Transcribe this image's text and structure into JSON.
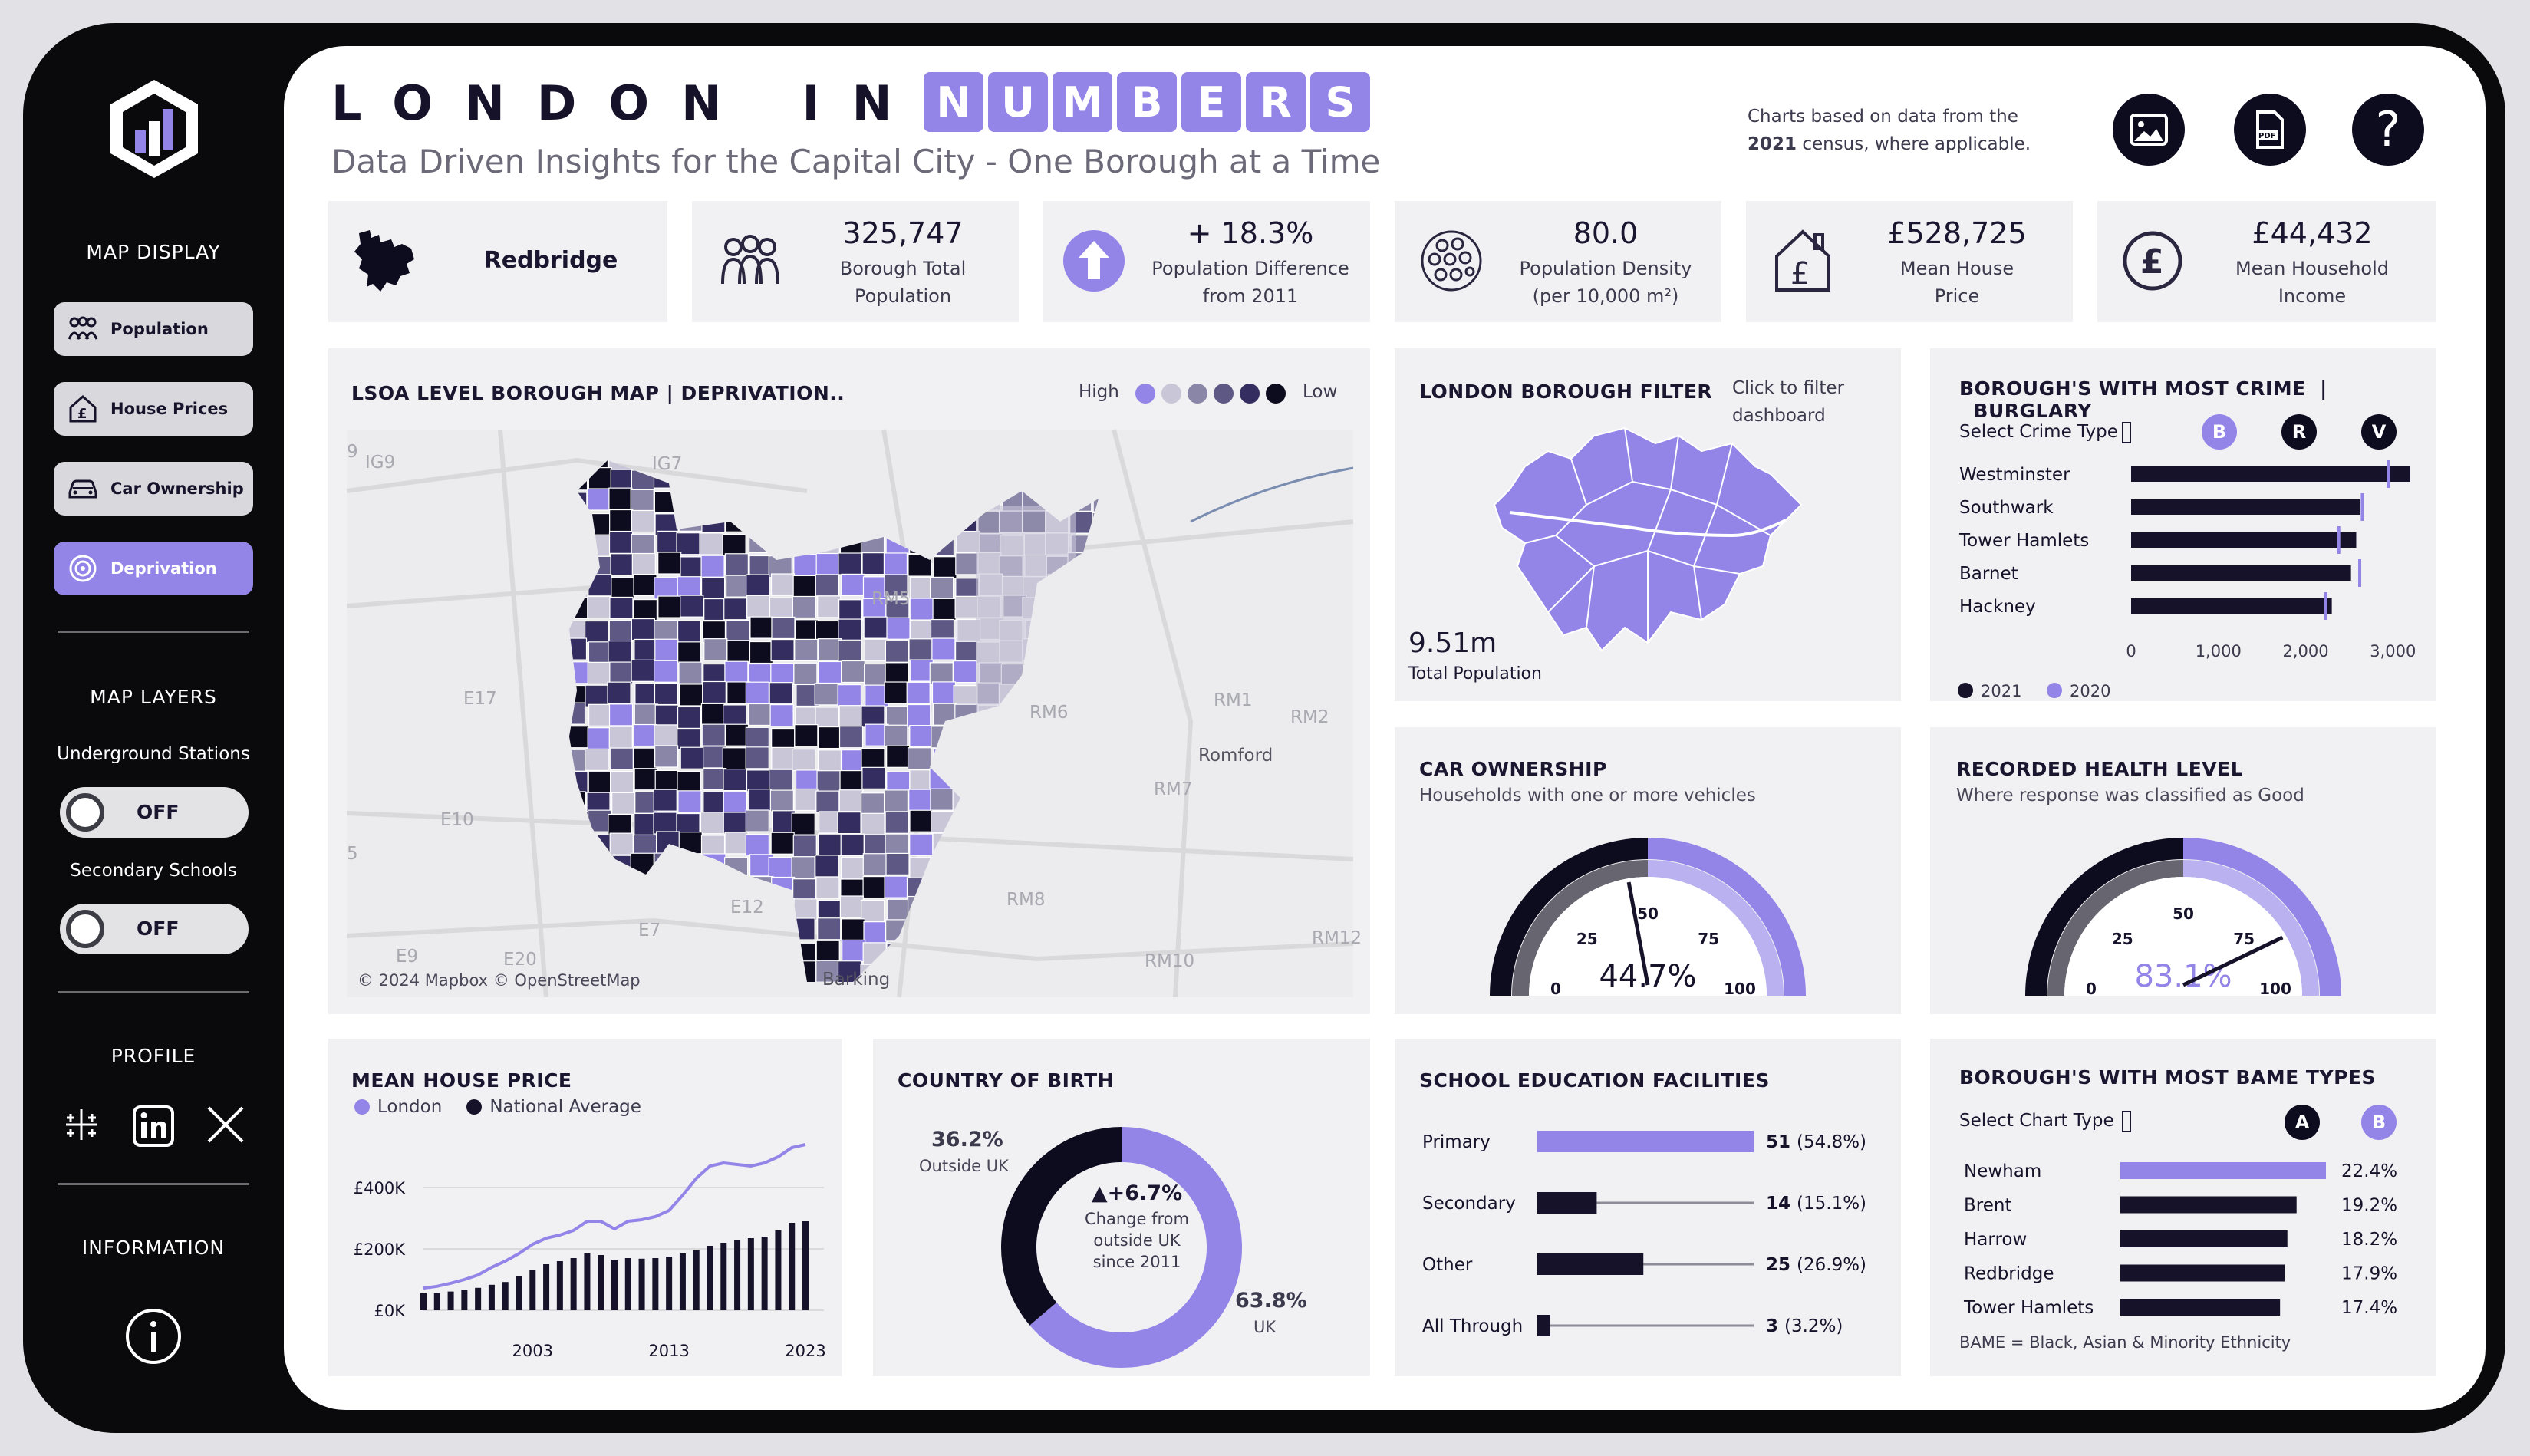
{
  "brand": {
    "title_left": "LONDON IN",
    "title_right": "NUMBERS",
    "subtitle": "Data Driven Insights for the Capital City - One Borough at a Time",
    "note_line1": "Charts based on data from the",
    "note_year": "2021",
    "note_line2": "census, where applicable.",
    "accent": "#9384e8",
    "dark": "#15122a"
  },
  "sidebar": {
    "map_display_title": "MAP DISPLAY",
    "buttons": [
      {
        "label": "Population",
        "icon": "people-icon",
        "active": false
      },
      {
        "label": "House Prices",
        "icon": "house-pound-icon",
        "active": false
      },
      {
        "label": "Car Ownership",
        "icon": "car-icon",
        "active": false
      },
      {
        "label": "Deprivation",
        "icon": "target-icon",
        "active": true
      }
    ],
    "map_layers_title": "MAP LAYERS",
    "layers": [
      {
        "label": "Underground Stations",
        "state": "OFF"
      },
      {
        "label": "Secondary Schools",
        "state": "OFF"
      }
    ],
    "profile_title": "PROFILE",
    "information_title": "INFORMATION"
  },
  "kpis": {
    "borough": "Redbridge",
    "population_value": "325,747",
    "population_label1": "Borough Total",
    "population_label2": "Population",
    "diff_value": "+ 18.3%",
    "diff_label1": "Population Difference",
    "diff_label2": "from 2011",
    "density_value": "80.0",
    "density_label1": "Population Density",
    "density_label2": "(per 10,000 m²)",
    "house_value": "£528,725",
    "house_label1": "Mean House",
    "house_label2": "Price",
    "income_value": "£44,432",
    "income_label1": "Mean Household",
    "income_label2": "Income"
  },
  "map": {
    "title": "LSOA LEVEL BOROUGH MAP  |  DEPRIVATION..",
    "legend_high": "High",
    "legend_low": "Low",
    "legend_colors": [
      "#9384e8",
      "#c9c6d8",
      "#8a86a8",
      "#5d5884",
      "#342d5f",
      "#0d0b1e"
    ],
    "attribution": "© 2024 Mapbox © OpenStreetMap",
    "place_labels": [
      "IG9",
      "IG7",
      "RM5",
      "E17",
      "RM6",
      "RM1",
      "RM2",
      "Romford",
      "E10",
      "RM7",
      "E7",
      "E12",
      "RM8",
      "E9",
      "E20",
      "Barking",
      "RM10",
      "RM12",
      "9",
      "5"
    ]
  },
  "filter": {
    "title": "LONDON BOROUGH FILTER",
    "hint1": "Click to filter",
    "hint2": "dashboard",
    "total_value": "9.51m",
    "total_label": "Total Population"
  },
  "crime": {
    "title_prefix": "BOROUGH'S WITH MOST CRIME",
    "title_type": "BURGLARY",
    "select_label": "Select Crime Type",
    "type_buttons": [
      {
        "label": "B",
        "active": true
      },
      {
        "label": "R",
        "active": false
      },
      {
        "label": "V",
        "active": false
      }
    ],
    "legend_2021": "2021",
    "legend_2020": "2020"
  },
  "car": {
    "title": "CAR OWNERSHIP",
    "subtitle": "Households with one or more vehicles",
    "value_label": "44.7%",
    "ticks": [
      "0",
      "25",
      "50",
      "75",
      "100"
    ]
  },
  "health": {
    "title": "RECORDED HEALTH LEVEL",
    "subtitle": "Where response was classified as Good",
    "value_label": "83.1%",
    "ticks": [
      "0",
      "25",
      "50",
      "75",
      "100"
    ]
  },
  "house_price_chart": {
    "title": "MEAN HOUSE PRICE",
    "legend_london": "London",
    "legend_national": "National Average"
  },
  "birth": {
    "title": "COUNTRY OF BIRTH",
    "outside_pct": "36.2%",
    "outside_label": "Outside UK",
    "uk_pct": "63.8%",
    "uk_label": "UK",
    "center_value": "▲+6.7%",
    "center_line1": "Change from",
    "center_line2": "outside UK",
    "center_line3": "since 2011"
  },
  "schools": {
    "title": "SCHOOL EDUCATION FACILITIES",
    "rows": [
      {
        "label": "Primary",
        "count": "51",
        "pct": "(54.8%)"
      },
      {
        "label": "Secondary",
        "count": "14",
        "pct": "(15.1%)"
      },
      {
        "label": "Other",
        "count": "25",
        "pct": "(26.9%)"
      },
      {
        "label": "All Through",
        "count": "3",
        "pct": "(3.2%)"
      }
    ]
  },
  "bame": {
    "title": "BOROUGH'S WITH MOST BAME TYPES",
    "select_label": "Select Chart Type",
    "type_buttons": [
      {
        "label": "A",
        "active": false
      },
      {
        "label": "B",
        "active": true
      }
    ],
    "rows": [
      {
        "label": "Newham",
        "pct": "22.4%"
      },
      {
        "label": "Brent",
        "pct": "19.2%"
      },
      {
        "label": "Harrow",
        "pct": "18.2%"
      },
      {
        "label": "Redbridge",
        "pct": "17.9%"
      },
      {
        "label": "Tower Hamlets",
        "pct": "17.4%"
      }
    ],
    "footnote": "BAME  =  Black, Asian & Minority Ethnicity"
  },
  "chart_data": [
    {
      "type": "bar",
      "title": "BOROUGH'S WITH MOST CRIME | BURGLARY",
      "categories": [
        "Westminster",
        "Southwark",
        "Tower Hamlets",
        "Barnet",
        "Hackney"
      ],
      "series": [
        {
          "name": "2021",
          "values": [
            3200,
            2620,
            2580,
            2520,
            2300
          ]
        },
        {
          "name": "2020",
          "values": [
            2950,
            2650,
            2380,
            2620,
            2230
          ]
        }
      ],
      "xlim": [
        0,
        3200
      ],
      "xticks": [
        "0",
        "1,000",
        "2,000",
        "3,000"
      ]
    },
    {
      "type": "bar",
      "title": "CAR OWNERSHIP",
      "values": [
        44.7
      ],
      "ylim": [
        0,
        100
      ]
    },
    {
      "type": "bar",
      "title": "RECORDED HEALTH LEVEL",
      "values": [
        83.1
      ],
      "ylim": [
        0,
        100
      ]
    },
    {
      "type": "line",
      "title": "MEAN HOUSE PRICE",
      "x": [
        1995,
        1996,
        1997,
        1998,
        1999,
        2000,
        2001,
        2002,
        2003,
        2004,
        2005,
        2006,
        2007,
        2008,
        2009,
        2010,
        2011,
        2012,
        2013,
        2014,
        2015,
        2016,
        2017,
        2018,
        2019,
        2020,
        2021,
        2022,
        2023
      ],
      "series": [
        {
          "name": "London",
          "values": [
            72,
            78,
            88,
            100,
            115,
            140,
            160,
            185,
            215,
            235,
            245,
            260,
            290,
            290,
            265,
            290,
            295,
            305,
            325,
            375,
            430,
            470,
            480,
            475,
            470,
            480,
            500,
            530,
            540
          ]
        },
        {
          "name": "National Average",
          "values": [
            55,
            57,
            61,
            67,
            73,
            83,
            92,
            110,
            130,
            150,
            160,
            170,
            185,
            180,
            165,
            170,
            168,
            170,
            175,
            185,
            195,
            210,
            220,
            230,
            235,
            240,
            260,
            285,
            290
          ]
        }
      ],
      "yticks": [
        "£0K",
        "£200K",
        "£400K"
      ],
      "xticks": [
        "2003",
        "2013",
        "2023"
      ],
      "ylim": [
        0,
        600
      ]
    },
    {
      "type": "pie",
      "title": "COUNTRY OF BIRTH",
      "categories": [
        "Outside UK",
        "UK"
      ],
      "values": [
        36.2,
        63.8
      ]
    },
    {
      "type": "bar",
      "title": "SCHOOL EDUCATION FACILITIES",
      "categories": [
        "Primary",
        "Secondary",
        "Other",
        "All Through"
      ],
      "values": [
        51,
        14,
        25,
        3
      ]
    },
    {
      "type": "bar",
      "title": "BOROUGH'S WITH MOST BAME TYPES",
      "categories": [
        "Newham",
        "Brent",
        "Harrow",
        "Redbridge",
        "Tower Hamlets"
      ],
      "values": [
        22.4,
        19.2,
        18.2,
        17.9,
        17.4
      ]
    }
  ]
}
